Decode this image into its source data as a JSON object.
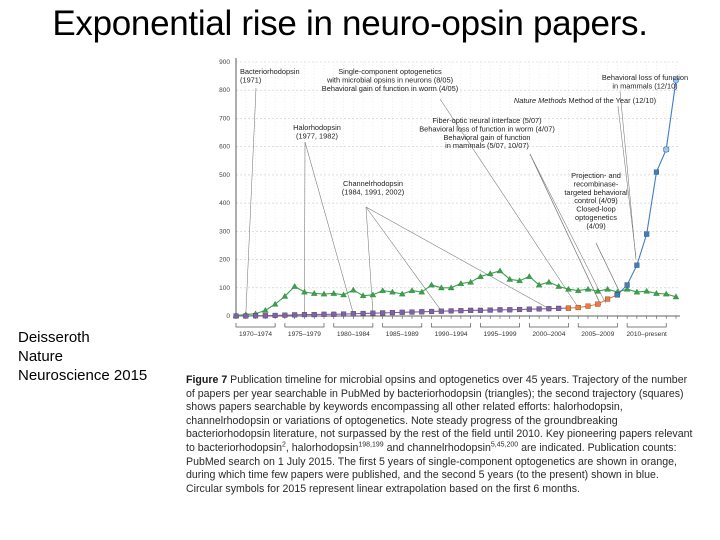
{
  "slide": {
    "title": "Exponential rise in neuro-opsin papers.",
    "citation": [
      "Deisseroth",
      "Nature",
      "Neuroscience 2015"
    ]
  },
  "caption": {
    "label": "Figure 7",
    "parts": [
      "Publication timeline for microbial opsins and optogenetics over 45 years. Trajectory of the number of papers per year searchable in PubMed by bacteriorhodopsin (triangles); the second trajectory (squares) shows papers searchable by keywords encompassing all other related efforts: halorhodopsin, channelrhodopsin or variations of optogenetics. Note steady progress of the groundbreaking bacteriorhodopsin literature, not surpassed by the rest of the field until 2010. Key pioneering papers relevant to bacteriorhodopsin",
      ", halorhodopsin",
      " and channelrhodopsin",
      " are indicated. Publication counts: PubMed search on 1 July 2015. The first 5 years of single-component optogenetics are shown in orange, during which time few papers were published, and the second 5 years (to the present) shown in blue. Circular symbols for 2015 represent linear extrapolation based on the first 6 months."
    ],
    "refs": [
      "2",
      "198,199",
      "5,45,200"
    ]
  },
  "chart_data": {
    "type": "line",
    "y_ticks": [
      0,
      100,
      200,
      300,
      400,
      500,
      600,
      700,
      800,
      900
    ],
    "ylim": [
      0,
      900
    ],
    "xlim": [
      1970,
      2015
    ],
    "x_tick_labels": [
      "1970–1974",
      "1975–1979",
      "1980–1984",
      "1985–1989",
      "1990–1994",
      "1995–1999",
      "2000–2004",
      "2005–2009",
      "2010–present"
    ],
    "grid": true,
    "series": [
      {
        "marker": "triangle",
        "color": "#3aa14a",
        "x": [
          1970,
          1971,
          1972,
          1973,
          1974,
          1975,
          1976,
          1977,
          1978,
          1979,
          1980,
          1981,
          1982,
          1983,
          1984,
          1985,
          1986,
          1987,
          1988,
          1989,
          1990,
          1991,
          1992,
          1993,
          1994,
          1995,
          1996,
          1997,
          1998,
          1999,
          2000,
          2001,
          2002,
          2003,
          2004,
          2005,
          2006,
          2007,
          2008,
          2009,
          2010,
          2011,
          2012,
          2013,
          2014,
          2015
        ],
        "values": [
          2,
          5,
          8,
          20,
          42,
          70,
          105,
          85,
          80,
          78,
          80,
          75,
          92,
          72,
          75,
          90,
          85,
          78,
          90,
          85,
          110,
          100,
          100,
          115,
          120,
          140,
          150,
          160,
          130,
          125,
          140,
          110,
          120,
          105,
          95,
          90,
          95,
          88,
          95,
          85,
          95,
          85,
          88,
          80,
          78,
          68
        ]
      },
      {
        "marker": "square",
        "color": "#8060a8",
        "x": [
          1970,
          1971,
          1972,
          1973,
          1974,
          1975,
          1976,
          1977,
          1978,
          1979,
          1980,
          1981,
          1982,
          1983,
          1984,
          1985,
          1986,
          1987,
          1988,
          1989,
          1990,
          1991,
          1992,
          1993,
          1994,
          1995,
          1996,
          1997,
          1998,
          1999,
          2000,
          2001,
          2002,
          2003,
          2004
        ],
        "values": [
          0,
          0,
          1,
          1,
          2,
          3,
          4,
          5,
          5,
          6,
          6,
          7,
          8,
          9,
          10,
          11,
          12,
          13,
          14,
          15,
          16,
          17,
          18,
          19,
          20,
          20,
          21,
          22,
          22,
          23,
          24,
          25,
          26,
          27,
          28
        ]
      },
      {
        "marker": "square",
        "color": "#ef7a3a",
        "x": [
          2004,
          2005,
          2006,
          2007,
          2008,
          2009
        ],
        "values": [
          28,
          30,
          35,
          42,
          60,
          75
        ]
      },
      {
        "marker": "square",
        "color": "#3f7ec4",
        "x": [
          2009,
          2010,
          2011,
          2012,
          2013,
          2014
        ],
        "values": [
          75,
          110,
          180,
          290,
          510,
          590
        ]
      },
      {
        "marker": "circle",
        "color": "#3f7ec4",
        "x": [
          2014,
          2015
        ],
        "values": [
          590,
          835
        ]
      }
    ],
    "annotations": [
      {
        "lines": [
          "Bacteriorhodopsin",
          "(1971)"
        ],
        "x": 1971
      },
      {
        "lines": [
          "Single-component optogenetics",
          "with microbial opsins in neurons (8/05)",
          "Behavioral gain of function in worm (4/05)"
        ],
        "x": 2005
      },
      {
        "lines": [
          "Behavioral loss of function",
          "in mammals (12/10)"
        ],
        "x": 2010.9
      },
      {
        "lines": [
          "Nature Methods Method of the Year (12/10)"
        ],
        "x": 2010.9
      },
      {
        "lines": [
          "Fiber-optic neural interface (5/07)",
          "Behavioral loss of function in worm (4/07)",
          "Behavioral gain of function",
          "in mammals (5/07, 10/07)"
        ],
        "x": 2007.3
      },
      {
        "lines": [
          "Halorhodopsin",
          "(1977, 1982)"
        ],
        "x": 1977
      },
      {
        "lines": [
          "Projection- and",
          "recombinase-",
          "targeted behavioral",
          "control (4/09)",
          "Closed-loop",
          "optogenetics",
          "(4/09)"
        ],
        "x": 2009.3
      },
      {
        "lines": [
          "Channelrhodopsin",
          "(1984, 1991, 2002)"
        ],
        "x": 1991
      }
    ]
  }
}
